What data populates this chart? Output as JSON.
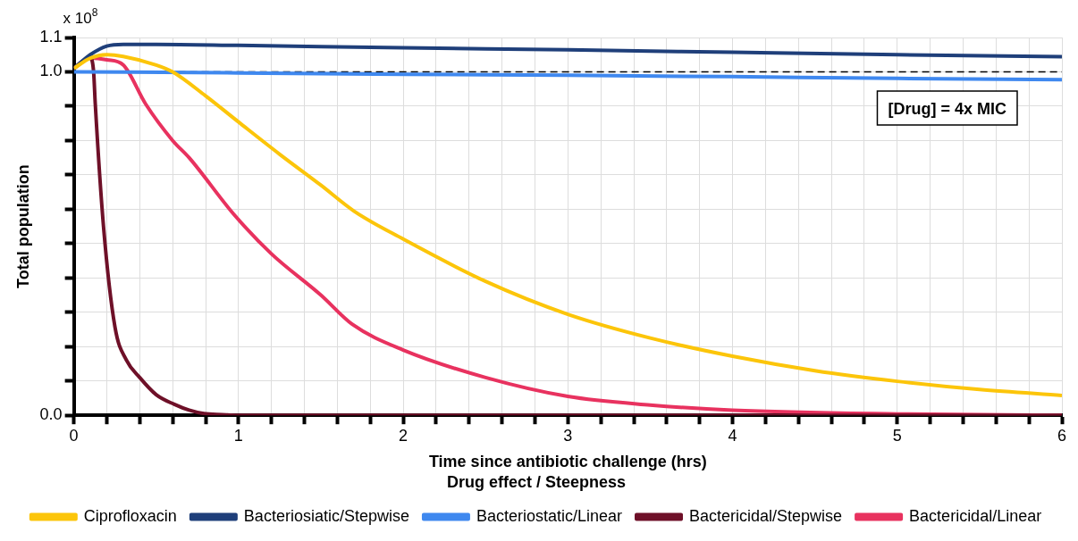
{
  "chart_data": {
    "type": "line",
    "xlabel": "Time since antibiotic challenge (hrs)",
    "ylabel": "Total population",
    "legend_title": "Drug effect / Steepness",
    "legend": "bottom",
    "grid": true,
    "marker": "none",
    "line_style": "solid",
    "xlim": [
      0,
      6
    ],
    "ylim": [
      0,
      1.1
    ],
    "xticks": [
      0,
      {
        "value": 0.2,
        "label": null
      },
      {
        "value": 0.4,
        "label": null
      },
      {
        "value": 0.6,
        "label": null
      },
      {
        "value": 0.8,
        "label": null
      },
      1,
      {
        "value": 1.2,
        "label": null
      },
      {
        "value": 1.4,
        "label": null
      },
      {
        "value": 1.6,
        "label": null
      },
      {
        "value": 1.8,
        "label": null
      },
      2,
      {
        "value": 2.2,
        "label": null
      },
      {
        "value": 2.4,
        "label": null
      },
      {
        "value": 2.6,
        "label": null
      },
      {
        "value": 2.8,
        "label": null
      },
      3,
      {
        "value": 3.2,
        "label": null
      },
      {
        "value": 3.4,
        "label": null
      },
      {
        "value": 3.6,
        "label": null
      },
      {
        "value": 3.8,
        "label": null
      },
      4,
      {
        "value": 4.2,
        "label": null
      },
      {
        "value": 4.4,
        "label": null
      },
      {
        "value": 4.6,
        "label": null
      },
      {
        "value": 4.8,
        "label": null
      },
      5,
      {
        "value": 5.2,
        "label": null
      },
      {
        "value": 5.4,
        "label": null
      },
      {
        "value": 5.6,
        "label": null
      },
      {
        "value": 5.8,
        "label": null
      },
      6
    ],
    "yticks": [
      {
        "value": 0,
        "label": "0.0"
      },
      {
        "value": 0.1,
        "label": null
      },
      {
        "value": 0.2,
        "label": null
      },
      {
        "value": 0.3,
        "label": null
      },
      {
        "value": 0.4,
        "label": null
      },
      {
        "value": 0.5,
        "label": null
      },
      {
        "value": 0.6,
        "label": null
      },
      {
        "value": 0.7,
        "label": null
      },
      {
        "value": 0.8,
        "label": null
      },
      {
        "value": 0.9,
        "label": null
      },
      {
        "value": 1,
        "label": "1.0"
      },
      {
        "value": 1.1,
        "label": "1.1"
      }
    ],
    "ref_lines": [
      {
        "axis": "y",
        "value": 1,
        "color": "#000000",
        "line_style": "dashed"
      }
    ],
    "annotations": [
      "x 10$^{8}$",
      "[Drug] = 4x MIC"
    ],
    "series": [
      {
        "name": "Ciprofloxacin",
        "color": "#fcc50a",
        "x": [
          0,
          0.1,
          0.2,
          0.3,
          0.5,
          0.6,
          0.8,
          1,
          1.25,
          1.5,
          1.7,
          2,
          2.5,
          3,
          3.5,
          4,
          4.5,
          5,
          5.5,
          6
        ],
        "values": [
          1.01,
          1.04,
          1.05,
          1.045,
          1.02,
          1.0,
          0.93,
          0.854,
          0.76,
          0.67,
          0.595,
          0.513,
          0.39,
          0.294,
          0.225,
          0.172,
          0.13,
          0.099,
          0.075,
          0.058
        ]
      },
      {
        "name": "Bacteriosiatic/Stepwise",
        "color": "#1f3f7a",
        "x": [
          0,
          0.1,
          0.2,
          0.3,
          0.5,
          1,
          2,
          3,
          4,
          5,
          6
        ],
        "values": [
          1.01,
          1.05,
          1.075,
          1.08,
          1.08,
          1.077,
          1.07,
          1.064,
          1.057,
          1.05,
          1.044
        ]
      },
      {
        "name": "Bacteriostatic/Linear",
        "color": "#3f88ef",
        "x": [
          0,
          1,
          2,
          3,
          4,
          5,
          6
        ],
        "values": [
          1.0,
          0.997,
          0.993,
          0.99,
          0.986,
          0.981,
          0.977
        ]
      },
      {
        "name": "Bactericidal/Stepwise",
        "color": "#6e1028",
        "x": [
          0,
          0.05,
          0.1,
          0.12,
          0.13,
          0.18,
          0.25,
          0.32,
          0.4,
          0.5,
          0.61,
          0.7,
          0.79,
          0.9,
          1,
          1.5,
          2,
          6
        ],
        "values": [
          1.01,
          1.03,
          1.04,
          1.0,
          0.907,
          0.55,
          0.256,
          0.16,
          0.11,
          0.06,
          0.032,
          0.015,
          0.005,
          0.002,
          0,
          0,
          0,
          0
        ]
      },
      {
        "name": "Bactericidal/Linear",
        "color": "#e8325f",
        "x": [
          0,
          0.1,
          0.2,
          0.3,
          0.435,
          0.6,
          0.7,
          0.97,
          1.2,
          1.5,
          1.69,
          2,
          2.5,
          3,
          3.5,
          4,
          5,
          6
        ],
        "values": [
          1.01,
          1.04,
          1.035,
          1.02,
          0.907,
          0.8,
          0.75,
          0.586,
          0.47,
          0.35,
          0.265,
          0.19,
          0.11,
          0.055,
          0.03,
          0.015,
          0.004,
          0
        ]
      }
    ]
  }
}
